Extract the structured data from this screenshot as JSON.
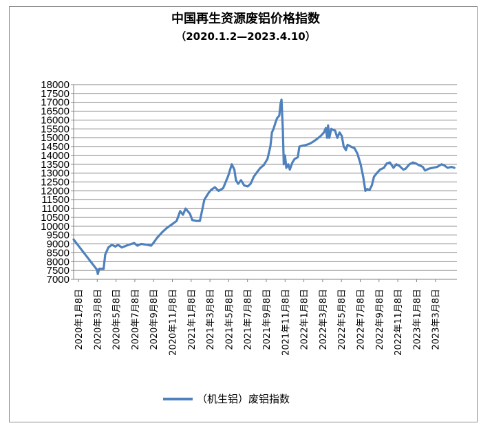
{
  "chart_data": {
    "type": "line",
    "title": "中国再生资源废铝价格指数",
    "subtitle": "（2020.1.2—2023.4.10）",
    "xlabel": "",
    "ylabel": "",
    "ylim": [
      7000,
      18000
    ],
    "y_ticks": [
      7000,
      7500,
      8000,
      8500,
      9000,
      9500,
      10000,
      10500,
      11000,
      11500,
      12000,
      12500,
      13000,
      13500,
      14000,
      14500,
      15000,
      15500,
      16000,
      16500,
      17000,
      17500,
      18000
    ],
    "x_ticks": [
      "2020年1月8日",
      "2020年3月8日",
      "2020年5月8日",
      "2020年7月8日",
      "2020年9月8日",
      "2020年11月8日",
      "2021年1月8日",
      "2021年3月8日",
      "2021年5月8日",
      "2021年7月8日",
      "2021年9月8日",
      "2021年11月8日",
      "2022年1月8日",
      "2022年3月8日",
      "2022年5月8日",
      "2022年7月8日",
      "2022年9月8日",
      "2022年11月8日",
      "2023年1月8日",
      "2023年3月8日"
    ],
    "grid": true,
    "legend_position": "bottom",
    "series": [
      {
        "name": "（机生铝）废铝指数",
        "color": "#4e81bd",
        "points": [
          [
            "2020-01-02",
            9250
          ],
          [
            "2020-03-15",
            7550
          ],
          [
            "2020-03-18",
            7300
          ],
          [
            "2020-03-22",
            7600
          ],
          [
            "2020-04-05",
            7600
          ],
          [
            "2020-04-10",
            8400
          ],
          [
            "2020-04-20",
            8800
          ],
          [
            "2020-05-01",
            8950
          ],
          [
            "2020-05-12",
            8850
          ],
          [
            "2020-05-20",
            8950
          ],
          [
            "2020-06-01",
            8800
          ],
          [
            "2020-06-15",
            8900
          ],
          [
            "2020-07-01",
            9000
          ],
          [
            "2020-07-10",
            9050
          ],
          [
            "2020-07-20",
            8900
          ],
          [
            "2020-08-01",
            9000
          ],
          [
            "2020-08-20",
            8950
          ],
          [
            "2020-09-01",
            8900
          ],
          [
            "2020-09-08",
            9050
          ],
          [
            "2020-09-20",
            9350
          ],
          [
            "2020-10-05",
            9650
          ],
          [
            "2020-10-20",
            9900
          ],
          [
            "2020-11-05",
            10100
          ],
          [
            "2020-11-20",
            10300
          ],
          [
            "2020-12-01",
            10850
          ],
          [
            "2020-12-10",
            10650
          ],
          [
            "2020-12-18",
            11000
          ],
          [
            "2021-01-01",
            10700
          ],
          [
            "2021-01-08",
            10350
          ],
          [
            "2021-01-20",
            10300
          ],
          [
            "2021-02-01",
            10300
          ],
          [
            "2021-02-15",
            11500
          ],
          [
            "2021-03-01",
            11900
          ],
          [
            "2021-03-08",
            12050
          ],
          [
            "2021-03-20",
            12200
          ],
          [
            "2021-04-01",
            12000
          ],
          [
            "2021-04-15",
            12150
          ],
          [
            "2021-05-01",
            12850
          ],
          [
            "2021-05-12",
            13500
          ],
          [
            "2021-05-20",
            13200
          ],
          [
            "2021-05-25",
            12600
          ],
          [
            "2021-06-01",
            12400
          ],
          [
            "2021-06-10",
            12600
          ],
          [
            "2021-06-20",
            12300
          ],
          [
            "2021-07-01",
            12250
          ],
          [
            "2021-07-10",
            12400
          ],
          [
            "2021-07-20",
            12800
          ],
          [
            "2021-08-01",
            13100
          ],
          [
            "2021-08-10",
            13300
          ],
          [
            "2021-08-20",
            13450
          ],
          [
            "2021-09-01",
            13800
          ],
          [
            "2021-09-10",
            14500
          ],
          [
            "2021-09-15",
            15300
          ],
          [
            "2021-09-20",
            15500
          ],
          [
            "2021-09-25",
            15800
          ],
          [
            "2021-10-01",
            16100
          ],
          [
            "2021-10-08",
            16250
          ],
          [
            "2021-10-12",
            16900
          ],
          [
            "2021-10-15",
            17150
          ],
          [
            "2021-10-19",
            15500
          ],
          [
            "2021-10-22",
            13500
          ],
          [
            "2021-10-26",
            14000
          ],
          [
            "2021-10-30",
            13300
          ],
          [
            "2021-11-05",
            13500
          ],
          [
            "2021-11-10",
            13200
          ],
          [
            "2021-11-18",
            13600
          ],
          [
            "2021-11-25",
            13800
          ],
          [
            "2021-12-05",
            13900
          ],
          [
            "2021-12-10",
            14500
          ],
          [
            "2021-12-20",
            14550
          ],
          [
            "2022-01-01",
            14600
          ],
          [
            "2022-01-10",
            14650
          ],
          [
            "2022-01-20",
            14750
          ],
          [
            "2022-02-01",
            14900
          ],
          [
            "2022-02-15",
            15100
          ],
          [
            "2022-02-25",
            15300
          ],
          [
            "2022-03-03",
            15550
          ],
          [
            "2022-03-07",
            15000
          ],
          [
            "2022-03-10",
            15700
          ],
          [
            "2022-03-14",
            15000
          ],
          [
            "2022-03-20",
            15500
          ],
          [
            "2022-04-01",
            15400
          ],
          [
            "2022-04-08",
            15000
          ],
          [
            "2022-04-15",
            15300
          ],
          [
            "2022-04-22",
            15100
          ],
          [
            "2022-04-28",
            14500
          ],
          [
            "2022-05-05",
            14300
          ],
          [
            "2022-05-10",
            14600
          ],
          [
            "2022-05-20",
            14500
          ],
          [
            "2022-06-01",
            14400
          ],
          [
            "2022-06-10",
            14100
          ],
          [
            "2022-06-20",
            13500
          ],
          [
            "2022-06-28",
            12800
          ],
          [
            "2022-07-05",
            12000
          ],
          [
            "2022-07-10",
            12100
          ],
          [
            "2022-07-18",
            12050
          ],
          [
            "2022-07-25",
            12300
          ],
          [
            "2022-08-01",
            12800
          ],
          [
            "2022-08-10",
            13000
          ],
          [
            "2022-08-20",
            13200
          ],
          [
            "2022-09-01",
            13300
          ],
          [
            "2022-09-10",
            13550
          ],
          [
            "2022-09-20",
            13600
          ],
          [
            "2022-10-01",
            13300
          ],
          [
            "2022-10-10",
            13500
          ],
          [
            "2022-10-20",
            13400
          ],
          [
            "2022-11-01",
            13200
          ],
          [
            "2022-11-08",
            13250
          ],
          [
            "2022-11-20",
            13500
          ],
          [
            "2022-12-01",
            13600
          ],
          [
            "2022-12-10",
            13550
          ],
          [
            "2022-12-20",
            13450
          ],
          [
            "2023-01-01",
            13350
          ],
          [
            "2023-01-08",
            13150
          ],
          [
            "2023-01-20",
            13250
          ],
          [
            "2023-02-01",
            13300
          ],
          [
            "2023-02-15",
            13350
          ],
          [
            "2023-03-01",
            13500
          ],
          [
            "2023-03-08",
            13450
          ],
          [
            "2023-03-20",
            13300
          ],
          [
            "2023-04-01",
            13350
          ],
          [
            "2023-04-10",
            13300
          ]
        ]
      }
    ]
  }
}
